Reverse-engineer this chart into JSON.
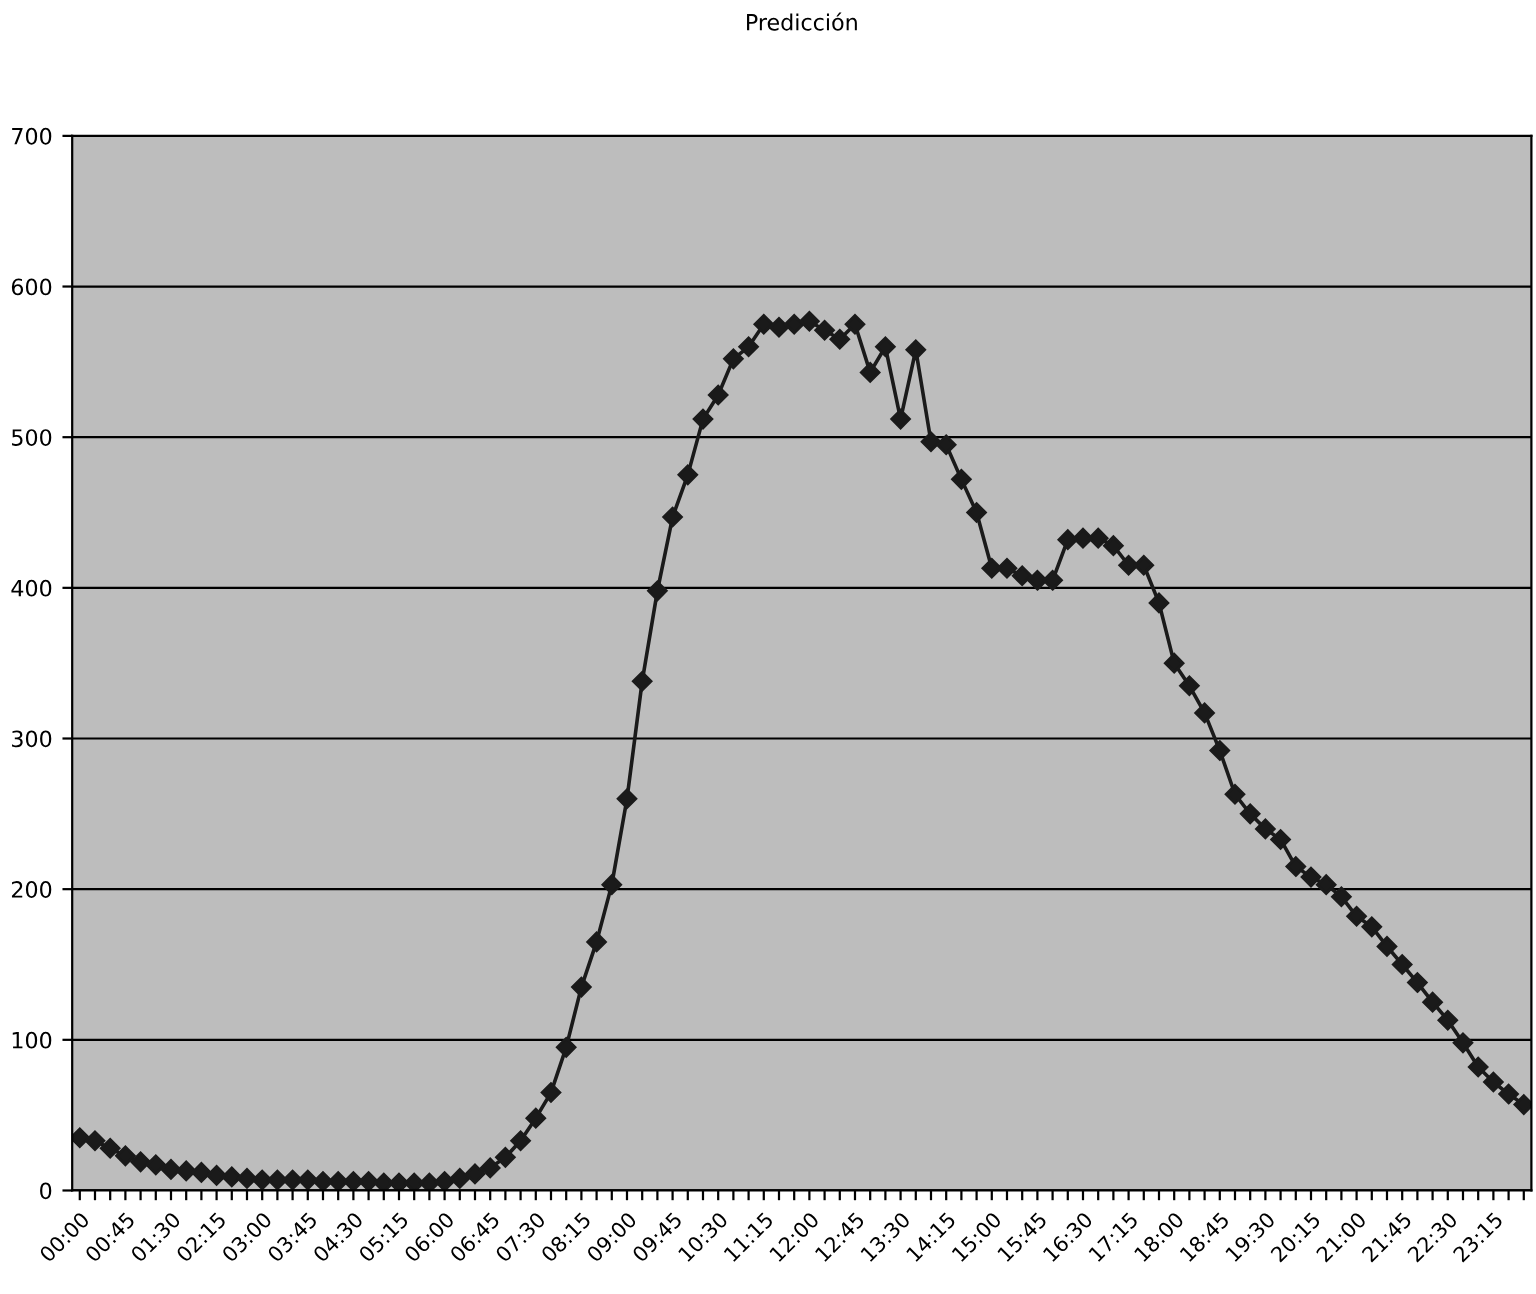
{
  "chart_data": {
    "type": "line",
    "title": "Predicción",
    "categories": [
      "00:00",
      null,
      null,
      "00:45",
      null,
      null,
      "01:30",
      null,
      null,
      "02:15",
      null,
      null,
      "03:00",
      null,
      null,
      "03:45",
      null,
      null,
      "04:30",
      null,
      null,
      "05:15",
      null,
      null,
      "06:00",
      null,
      null,
      "06:45",
      null,
      null,
      "07:30",
      null,
      null,
      "08:15",
      null,
      null,
      "09:00",
      null,
      null,
      "09:45",
      null,
      null,
      "10:30",
      null,
      null,
      "11:15",
      null,
      null,
      "12:00",
      null,
      null,
      "12:45",
      null,
      null,
      "13:30",
      null,
      null,
      "14:15",
      null,
      null,
      "15:00",
      null,
      null,
      "15:45",
      null,
      null,
      "16:30",
      null,
      null,
      "17:15",
      null,
      null,
      "18:00",
      null,
      null,
      "18:45",
      null,
      null,
      "19:30",
      null,
      null,
      "20:15",
      null,
      null,
      "21:00",
      null,
      null,
      "21:45",
      null,
      null,
      "22:30",
      null,
      null,
      "23:15",
      null,
      null
    ],
    "series": [
      {
        "color": "#1a1a1a",
        "values": [
          35,
          33,
          28,
          23,
          19,
          17,
          14,
          13,
          12,
          10,
          9,
          8,
          7,
          7,
          7,
          7,
          6,
          6,
          6,
          6,
          5,
          5,
          5,
          5,
          6,
          8,
          11,
          15,
          22,
          33,
          48,
          65,
          95,
          135,
          165,
          203,
          260,
          338,
          398,
          447,
          475,
          512,
          528,
          552,
          560,
          575,
          573,
          575,
          577,
          571,
          565,
          575,
          543,
          560,
          512,
          558,
          497,
          495,
          472,
          450,
          413,
          413,
          408,
          405,
          405,
          432,
          433,
          433,
          428,
          415,
          415,
          390,
          350,
          335,
          317,
          292,
          263,
          250,
          240,
          233,
          215,
          208,
          203,
          195,
          182,
          175,
          162,
          150,
          138,
          125,
          113,
          98,
          82,
          72,
          64,
          57
        ]
      }
    ],
    "ylim": [
      0,
      700
    ],
    "yticks": [
      0,
      100,
      200,
      300,
      400,
      500,
      600,
      700
    ],
    "grid": "y",
    "marker": "diamond",
    "line_style": "solid",
    "legend": false
  }
}
